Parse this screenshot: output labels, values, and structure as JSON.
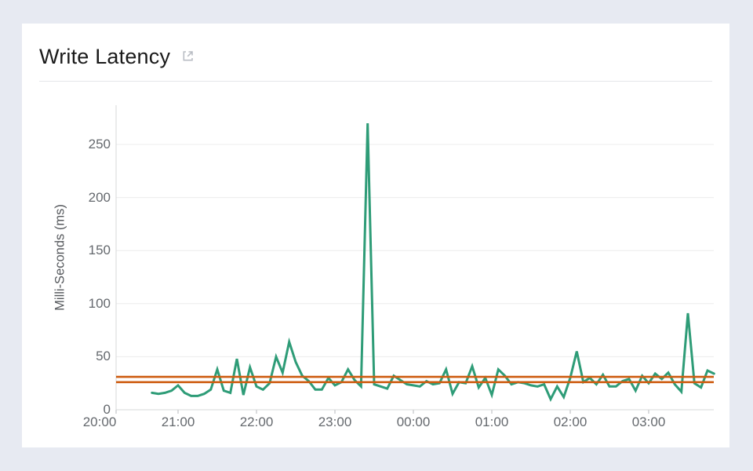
{
  "page": {
    "background_color": "#e7eaf2",
    "card_background_color": "#ffffff"
  },
  "header": {
    "title": "Write Latency",
    "icon": "external-link-icon"
  },
  "chart_data": {
    "type": "line",
    "title": "Write Latency",
    "xlabel": "",
    "ylabel": "Milli-Seconds (ms)",
    "unit": "ms",
    "grid": "horizontal",
    "legend": "none",
    "ylim": [
      0,
      285
    ],
    "y_ticks": [
      0,
      50,
      100,
      150,
      200,
      250
    ],
    "x_tick_labels": [
      "20:00",
      "21:00",
      "22:00",
      "23:00",
      "00:00",
      "01:00",
      "02:00",
      "03:00"
    ],
    "x_range": {
      "start": "20:00",
      "end": "03:50"
    },
    "series": [
      {
        "name": "Write Latency",
        "color": "#2e9c77",
        "start_time": "20:40",
        "end_time": "03:50",
        "interval_minutes": 5,
        "values": [
          16,
          15,
          16,
          18,
          23,
          16,
          13,
          13,
          15,
          19,
          38,
          18,
          16,
          48,
          14,
          40,
          22,
          19,
          25,
          50,
          35,
          64,
          45,
          32,
          27,
          19,
          19,
          30,
          23,
          26,
          38,
          28,
          22,
          270,
          24,
          22,
          20,
          32,
          28,
          24,
          23,
          22,
          27,
          24,
          25,
          38,
          15,
          26,
          25,
          41,
          21,
          30,
          14,
          38,
          32,
          24,
          26,
          25,
          23,
          22,
          24,
          10,
          22,
          12,
          30,
          55,
          26,
          30,
          24,
          33,
          22,
          22,
          27,
          29,
          18,
          32,
          25,
          34,
          29,
          35,
          24,
          17,
          91,
          25,
          21,
          37,
          34
        ]
      }
    ],
    "reference_lines": [
      {
        "name": "upper-threshold",
        "value": 31,
        "color": "#ce5c10"
      },
      {
        "name": "lower-threshold",
        "value": 26,
        "color": "#ce5c10"
      }
    ]
  }
}
